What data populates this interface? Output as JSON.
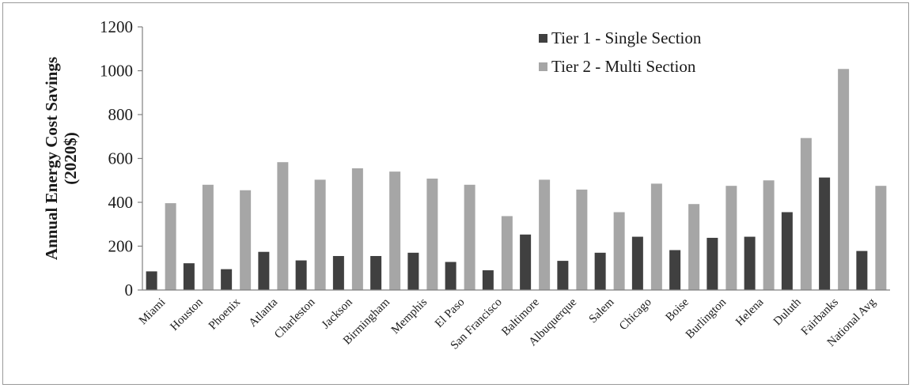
{
  "chart_data": {
    "type": "bar",
    "title": "",
    "ylabel": [
      "Annual Energy Cost Savings",
      "(2020$)"
    ],
    "xlabel": "",
    "ylim": [
      0,
      1200
    ],
    "yticks": [
      0,
      200,
      400,
      600,
      800,
      1000,
      1200
    ],
    "grid": false,
    "legend_position": "top-right",
    "categories": [
      "Miami",
      "Houston",
      "Phoenix",
      "Atlanta",
      "Charleston",
      "Jackson",
      "Birmingham",
      "Memphis",
      "El Paso",
      "San Francisco",
      "Baltimore",
      "Albuquerque",
      "Salem",
      "Chicago",
      "Boise",
      "Burlington",
      "Helena",
      "Duluth",
      "Fairbanks",
      "National Avg"
    ],
    "series": [
      {
        "name": "Tier 1 - Single Section",
        "color": "#404040",
        "values": [
          85,
          122,
          95,
          174,
          135,
          155,
          155,
          170,
          128,
          90,
          253,
          133,
          170,
          243,
          182,
          238,
          243,
          355,
          513,
          178
        ]
      },
      {
        "name": "Tier 2 - Multi Section",
        "color": "#a6a6a6",
        "values": [
          396,
          480,
          455,
          583,
          503,
          555,
          540,
          508,
          480,
          337,
          503,
          458,
          355,
          485,
          392,
          475,
          500,
          693,
          1008,
          475
        ]
      }
    ]
  }
}
